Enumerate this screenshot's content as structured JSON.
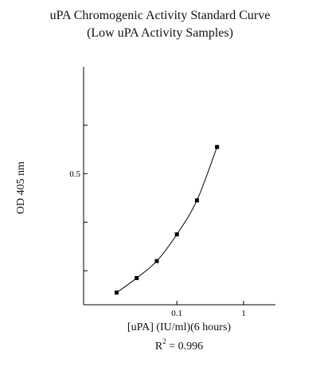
{
  "chart_data": {
    "type": "line",
    "title": "uPA Chromogenic Activity Standard Curve",
    "subtitle": "(Low uPA Activity Samples)",
    "xlabel": "[uPA] (IU/ml)(6 hours)",
    "ylabel": "OD 405 nm",
    "x_scale": "log",
    "xlim": [
      0.004,
      3
    ],
    "ylim": [
      0.23,
      0.72
    ],
    "x_ticks": [
      0.1,
      1
    ],
    "x_tick_labels": [
      "0.1",
      "1"
    ],
    "y_ticks": [
      0.2,
      0.3,
      0.4,
      0.5,
      0.6
    ],
    "y_tick_labels": [
      "",
      "",
      "",
      "0.5",
      ""
    ],
    "grid": false,
    "r2_label": "R",
    "r2_sup": "2",
    "r2_value": " = 0.996",
    "series": [
      {
        "x": [
          0.0125,
          0.025,
          0.05,
          0.1,
          0.2,
          0.4
        ],
        "y": [
          0.255,
          0.285,
          0.32,
          0.375,
          0.445,
          0.555
        ]
      }
    ]
  }
}
